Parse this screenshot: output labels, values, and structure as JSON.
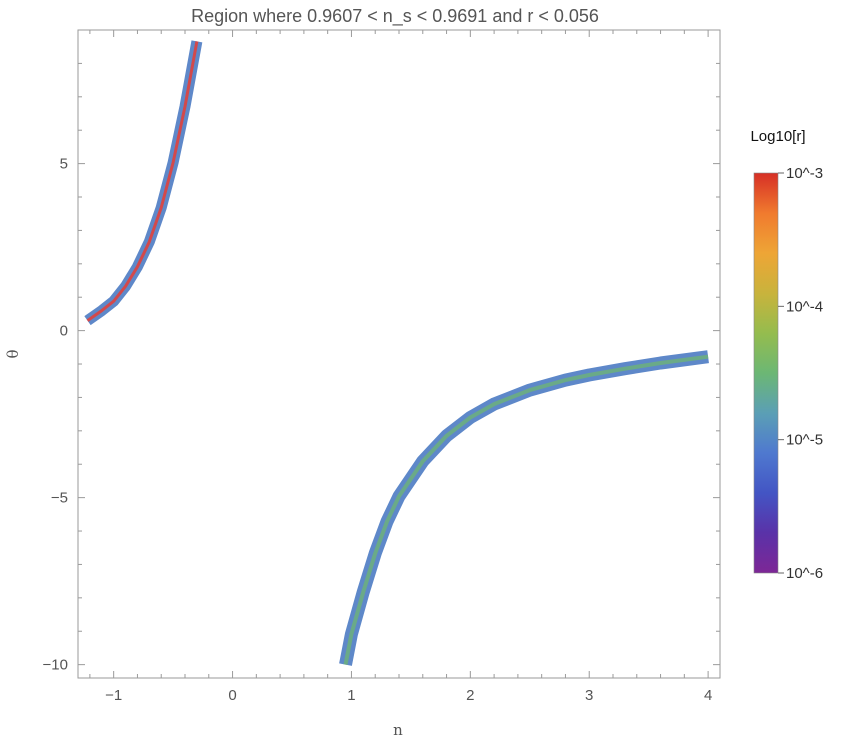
{
  "chart_data": {
    "type": "region",
    "title": "Region where 0.9607 < n_s < 0.9691 and r < 0.056",
    "xlabel": "n",
    "ylabel": "θ",
    "xlim": [
      -1.3,
      4.1
    ],
    "ylim": [
      -10.4,
      9.0
    ],
    "xticks": [
      -1,
      0,
      1,
      2,
      3,
      4
    ],
    "xtick_labels": [
      "−1",
      "0",
      "1",
      "2",
      "3",
      "4"
    ],
    "yticks": [
      -10,
      -5,
      0,
      5
    ],
    "ytick_labels": [
      "−10",
      "−5",
      "0",
      "5"
    ],
    "grid": false,
    "series": [
      {
        "x": [
          -1.22,
          -1.1,
          -1.0,
          -0.9,
          -0.8,
          -0.7,
          -0.6,
          -0.5,
          -0.4,
          -0.3
        ],
        "y": [
          0.3,
          0.6,
          0.88,
          1.33,
          1.91,
          2.66,
          3.68,
          5.03,
          6.71,
          8.66
        ]
      },
      {
        "x": [
          0.95,
          1.0,
          1.1,
          1.2,
          1.3,
          1.4,
          1.6,
          1.8,
          2.0,
          2.2,
          2.5,
          2.8,
          3.0,
          3.3,
          3.6,
          4.0
        ],
        "y": [
          -10.0,
          -9.09,
          -7.82,
          -6.67,
          -5.71,
          -4.96,
          -3.91,
          -3.15,
          -2.6,
          -2.2,
          -1.78,
          -1.48,
          -1.33,
          -1.14,
          -0.97,
          -0.78
        ]
      }
    ],
    "colorbar": {
      "title": "Log10[r]",
      "labels": [
        "10^-3",
        "10^-4",
        "10^-5",
        "10^-6"
      ],
      "colors": [
        "#d62f26",
        "#f07a2e",
        "#eea536",
        "#c9b33c",
        "#95bc4e",
        "#6cb774",
        "#5b9fb5",
        "#4f79cf",
        "#4355c4",
        "#5a32a8",
        "#7d2796"
      ]
    },
    "colors": {
      "band_outer": "#5e88c9",
      "band_inner_left": "#e0423d",
      "band_inner_right": "#6cb07c",
      "frame": "#9a9a9a"
    }
  }
}
